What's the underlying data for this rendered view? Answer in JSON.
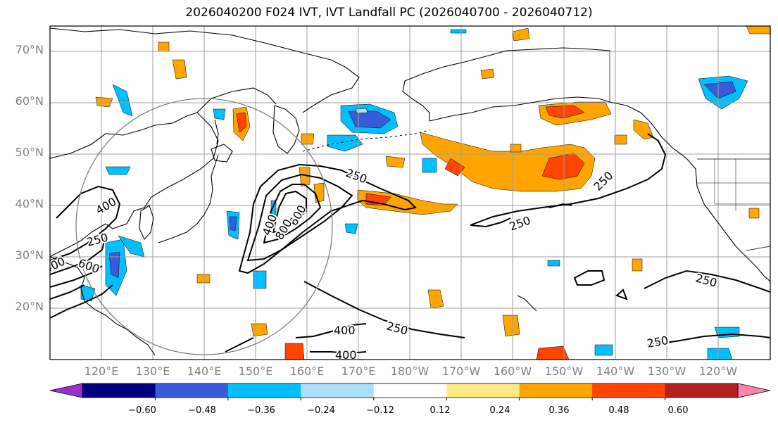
{
  "title": "2026040200 F024 IVT, IVT Landfall PC (2026040700 - 2026040712)",
  "lat_labels": [
    "70°N",
    "60°N",
    "50°N",
    "40°N",
    "30°N",
    "20°N"
  ],
  "lon_labels": [
    "120°E",
    "130°E",
    "140°E",
    "150°E",
    "160°E",
    "170°E",
    "180°W",
    "170°W",
    "160°W",
    "150°W",
    "140°W",
    "130°W",
    "120°W"
  ],
  "contour_labels": [
    "250",
    "250",
    "250",
    "250",
    "250",
    "250",
    "250",
    "400",
    "400",
    "600",
    "800",
    "400",
    "400",
    "600",
    "400"
  ],
  "colorbar": {
    "colors": [
      "#9932CC",
      "#000080",
      "#3A5BD9",
      "#00BFFF",
      "#ADDFFF",
      "#FFFFFF",
      "#FFE985",
      "#FFA500",
      "#FF4500",
      "#B22222",
      "#FF82AB"
    ],
    "ticks": [
      "−0.60",
      "−0.48",
      "−0.36",
      "−0.24",
      "−0.12",
      "0.12",
      "0.24",
      "0.36",
      "0.48",
      "0.60"
    ]
  },
  "map": {
    "lat_range": [
      10,
      75
    ],
    "lon_range": [
      110,
      250
    ],
    "projection": "PlateCarree",
    "circle_center": {
      "lat": 36,
      "lon": 140
    },
    "contour_levels": [
      250,
      400,
      600,
      800,
      1000
    ]
  }
}
